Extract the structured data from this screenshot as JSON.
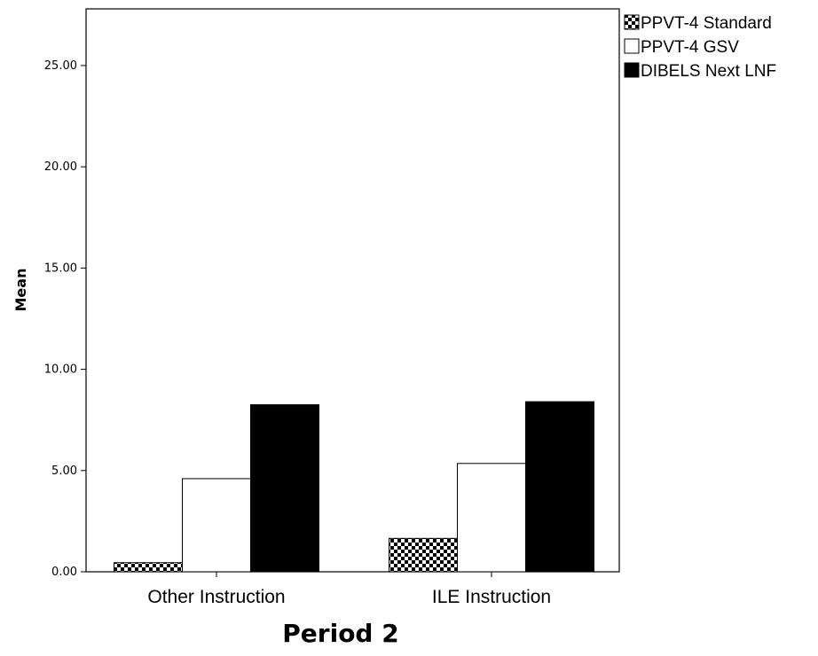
{
  "chart_data": {
    "type": "bar",
    "title": "",
    "xlabel": "Period 2",
    "ylabel": "Mean",
    "categories": [
      "Other Instruction",
      "ILE Instruction"
    ],
    "series": [
      {
        "name": "PPVT-4 Standard",
        "values": [
          0.45,
          1.65
        ],
        "fill": "checkered"
      },
      {
        "name": "PPVT-4 GSV",
        "values": [
          4.6,
          5.35
        ],
        "fill": "#ffffff"
      },
      {
        "name": "DIBELS Next LNF",
        "values": [
          8.25,
          8.4
        ],
        "fill": "#000000"
      }
    ],
    "ylim": [
      0,
      27.8
    ],
    "yticks": [
      "0.00",
      "5.00",
      "10.00",
      "15.00",
      "20.00",
      "25.00"
    ],
    "ytick_values": [
      0,
      5,
      10,
      15,
      20,
      25
    ],
    "grid": false,
    "legend_position": "outside-top-right"
  }
}
